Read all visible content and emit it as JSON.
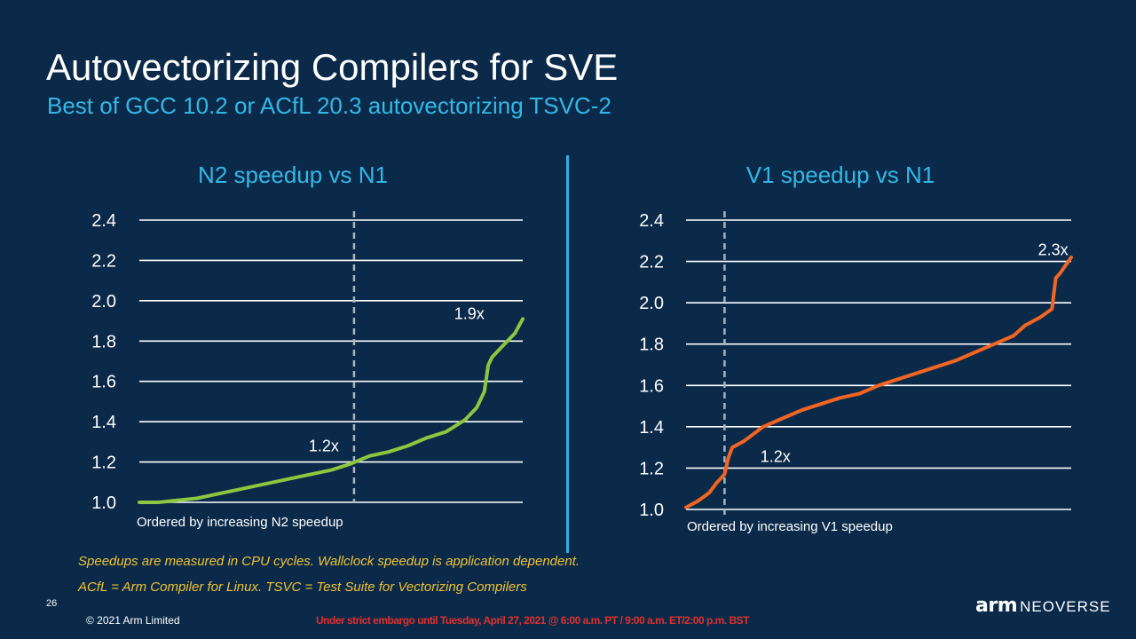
{
  "slide": {
    "title": "Autovectorizing Compilers for SVE",
    "subtitle": "Best of GCC 10.2 or ACfL 20.3 autovectorizing TSVC-2",
    "notes": [
      "Speedups are measured in CPU cycles.  Wallclock speedup is application dependent.",
      "ACfL = Arm Compiler for Linux. TSVC = Test Suite for Vectorizing Compilers"
    ],
    "page_number": "26",
    "copyright": "© 2021 Arm Limited",
    "embargo": "Under strict embargo until Tuesday, April 27, 2021 @ 6:00 a.m. PT / 9:00 a.m. ET/2:00 p.m. BST",
    "logo": {
      "arm": "arm",
      "product": "NEOVERSE"
    },
    "colors": {
      "background": "#0b2a4a",
      "accent": "#33b8e6",
      "note": "#f0c232",
      "embargo": "#e0302b",
      "n2_series": "#8dc63f",
      "v1_series": "#f26522"
    }
  },
  "chart_data": [
    {
      "type": "line",
      "title": "N2 speedup vs N1",
      "xlabel": "Ordered by increasing N2 speedup",
      "ylabel": "",
      "ylim": [
        1.0,
        2.4
      ],
      "yticks": [
        "1.0",
        "1.2",
        "1.4",
        "1.6",
        "1.8",
        "2.0",
        "2.2",
        "2.4"
      ],
      "grid": true,
      "series_color": "#8dc63f",
      "x": [
        0,
        0.05,
        0.1,
        0.15,
        0.2,
        0.25,
        0.3,
        0.35,
        0.4,
        0.45,
        0.5,
        0.55,
        0.6,
        0.65,
        0.7,
        0.75,
        0.8,
        0.85,
        0.88,
        0.9,
        0.91,
        0.92,
        0.95,
        0.98,
        1.0
      ],
      "values": [
        1.0,
        1.0,
        1.01,
        1.02,
        1.04,
        1.06,
        1.08,
        1.1,
        1.12,
        1.14,
        1.16,
        1.19,
        1.23,
        1.25,
        1.28,
        1.32,
        1.35,
        1.41,
        1.47,
        1.55,
        1.68,
        1.72,
        1.78,
        1.84,
        1.91
      ],
      "marker_x": 0.56,
      "annotations": [
        {
          "text": "1.2x",
          "x": 0.56,
          "y": 1.2
        },
        {
          "text": "1.9x",
          "x": 0.9,
          "y": 1.9
        }
      ]
    },
    {
      "type": "line",
      "title": "V1 speedup vs N1",
      "xlabel": "Ordered by increasing V1 speedup",
      "ylabel": "",
      "ylim": [
        1.0,
        2.4
      ],
      "yticks": [
        "1.0",
        "1.2",
        "1.4",
        "1.6",
        "1.8",
        "2.0",
        "2.2",
        "2.4"
      ],
      "grid": true,
      "series_color": "#f26522",
      "x": [
        0,
        0.03,
        0.06,
        0.08,
        0.09,
        0.1,
        0.11,
        0.12,
        0.15,
        0.2,
        0.25,
        0.3,
        0.35,
        0.4,
        0.45,
        0.5,
        0.55,
        0.6,
        0.65,
        0.7,
        0.75,
        0.8,
        0.85,
        0.88,
        0.92,
        0.95,
        0.96,
        0.97,
        1.0
      ],
      "values": [
        1.01,
        1.04,
        1.08,
        1.13,
        1.15,
        1.17,
        1.25,
        1.3,
        1.33,
        1.4,
        1.44,
        1.48,
        1.51,
        1.54,
        1.56,
        1.6,
        1.63,
        1.66,
        1.69,
        1.72,
        1.76,
        1.8,
        1.84,
        1.89,
        1.93,
        1.97,
        2.12,
        2.14,
        2.22
      ],
      "marker_x": 0.1,
      "annotations": [
        {
          "text": "1.2x",
          "x": 0.14,
          "y": 1.2
        },
        {
          "text": "2.3x",
          "x": 0.99,
          "y": 2.3
        }
      ]
    }
  ]
}
